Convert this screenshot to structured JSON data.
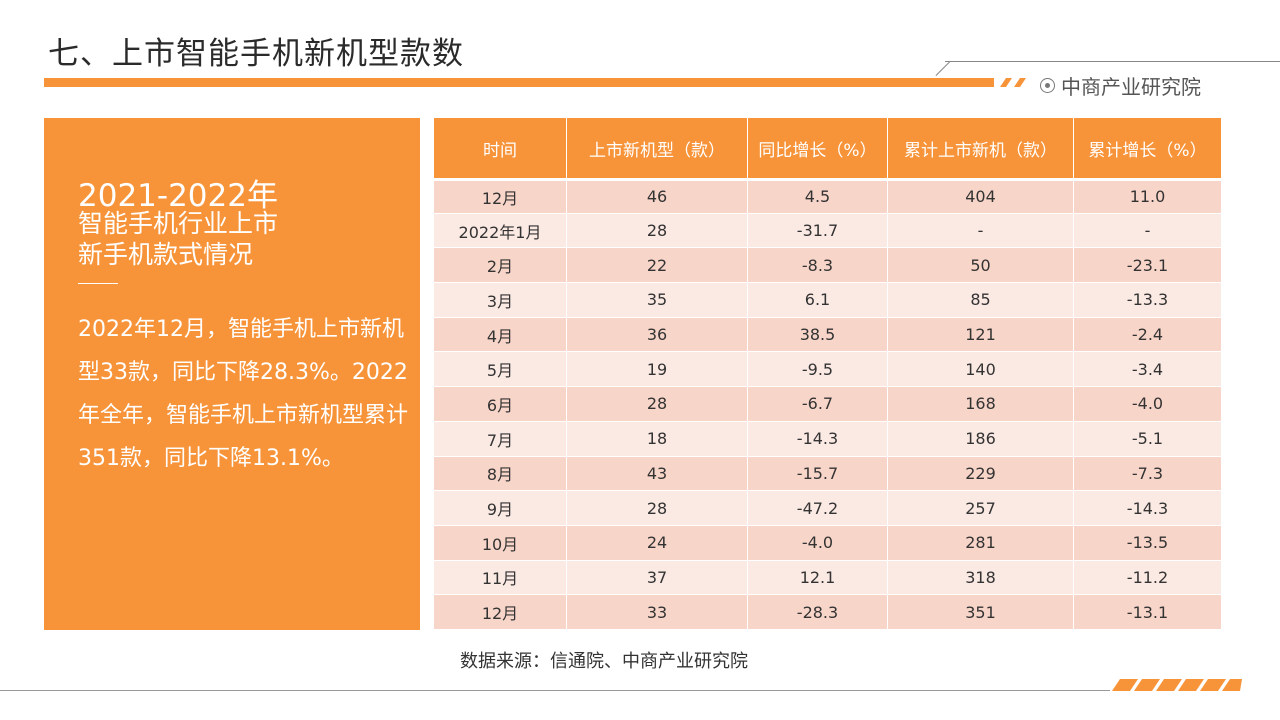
{
  "header": {
    "title": "七、上市智能手机新机型款数",
    "brand": "中商产业研究院",
    "accent_color": "#f7943a"
  },
  "summary": {
    "years": "2021-2022年",
    "subtitle_line1": "智能手机行业上市",
    "subtitle_line2": "新手机款式情况",
    "paragraph": "2022年12月，智能手机上市新机型33款，同比下降28.3%。2022年全年，智能手机上市新机型累计351款，同比下降13.1%。"
  },
  "table": {
    "headers": [
      "时间",
      "上市新机型（款）",
      "同比增长（%）",
      "累计上市新机（款）",
      "累计增长（%）"
    ],
    "rows": [
      [
        "12月",
        "46",
        "4.5",
        "404",
        "11.0"
      ],
      [
        "2022年1月",
        "28",
        "-31.7",
        "-",
        "-"
      ],
      [
        "2月",
        "22",
        "-8.3",
        "50",
        "-23.1"
      ],
      [
        "3月",
        "35",
        "6.1",
        "85",
        "-13.3"
      ],
      [
        "4月",
        "36",
        "38.5",
        "121",
        "-2.4"
      ],
      [
        "5月",
        "19",
        "-9.5",
        "140",
        "-3.4"
      ],
      [
        "6月",
        "28",
        "-6.7",
        "168",
        "-4.0"
      ],
      [
        "7月",
        "18",
        "-14.3",
        "186",
        "-5.1"
      ],
      [
        "8月",
        "43",
        "-15.7",
        "229",
        "-7.3"
      ],
      [
        "9月",
        "28",
        "-47.2",
        "257",
        "-14.3"
      ],
      [
        "10月",
        "24",
        "-4.0",
        "281",
        "-13.5"
      ],
      [
        "11月",
        "37",
        "12.1",
        "318",
        "-11.2"
      ],
      [
        "12月",
        "33",
        "-28.3",
        "351",
        "-13.1"
      ]
    ]
  },
  "footer": {
    "source": "数据来源：信通院、中商产业研究院"
  }
}
